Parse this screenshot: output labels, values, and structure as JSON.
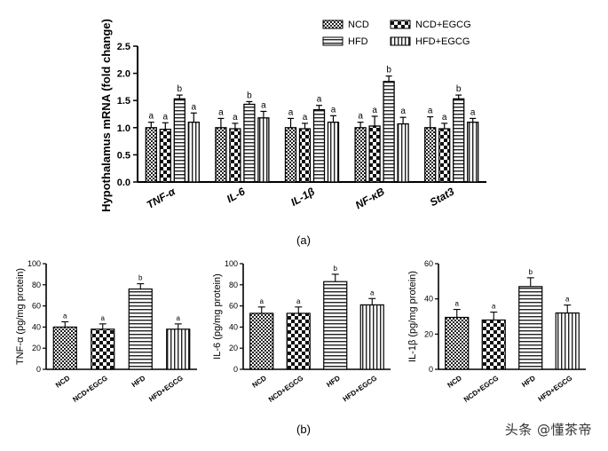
{
  "chart_data": [
    {
      "type": "bar",
      "panel_label": "(a)",
      "ylabel": "Hypothalamus mRNA (fold change)",
      "ylim": [
        0,
        2.5
      ],
      "yticks": [
        "0.0",
        "0.5",
        "1.0",
        "1.5",
        "2.0",
        "2.5"
      ],
      "categories": [
        "TNF-α",
        "IL-6",
        "IL-1β",
        "NF-κB",
        "Stat3"
      ],
      "legend_position": "top-right",
      "series": [
        {
          "name": "NCD",
          "pattern": "checker",
          "values": [
            1.0,
            1.0,
            1.0,
            1.0,
            1.0
          ],
          "errors": [
            0.1,
            0.17,
            0.17,
            0.1,
            0.2
          ],
          "labels": [
            "a",
            "a",
            "a",
            "a",
            "a"
          ]
        },
        {
          "name": "NCD+EGCG",
          "pattern": "checker-bold",
          "values": [
            0.97,
            0.98,
            0.98,
            1.03,
            0.98
          ],
          "errors": [
            0.12,
            0.1,
            0.1,
            0.18,
            0.1
          ],
          "labels": [
            "a",
            "a",
            "a",
            "a",
            "a"
          ]
        },
        {
          "name": "HFD",
          "pattern": "hlines",
          "values": [
            1.53,
            1.43,
            1.33,
            1.85,
            1.53
          ],
          "errors": [
            0.07,
            0.05,
            0.08,
            0.1,
            0.07
          ],
          "labels": [
            "b",
            "b",
            "a",
            "b",
            "b"
          ]
        },
        {
          "name": "HFD+EGCG",
          "pattern": "vlines",
          "values": [
            1.1,
            1.18,
            1.1,
            1.07,
            1.1
          ],
          "errors": [
            0.17,
            0.12,
            0.12,
            0.12,
            0.07
          ],
          "labels": [
            "a",
            "a",
            "a",
            "a",
            "a"
          ]
        }
      ]
    },
    {
      "type": "bar",
      "panel_label": "(b)",
      "ylabel": "TNF-α  (pg/mg protein)",
      "ylim": [
        0,
        100
      ],
      "yticks": [
        "0",
        "20",
        "40",
        "60",
        "80",
        "100"
      ],
      "categories": [
        "NCD",
        "NCD+EGCG",
        "HFD",
        "HFD+EGCG"
      ],
      "patterns": [
        "checker",
        "checker-bold",
        "hlines",
        "vlines"
      ],
      "values": [
        40,
        38,
        76,
        38
      ],
      "errors": [
        5,
        5,
        5,
        5
      ],
      "labels": [
        "a",
        "a",
        "b",
        "a"
      ]
    },
    {
      "type": "bar",
      "ylabel": "IL-6  (pg/mg protein)",
      "ylim": [
        0,
        100
      ],
      "yticks": [
        "0",
        "20",
        "40",
        "60",
        "80",
        "100"
      ],
      "categories": [
        "NCD",
        "NCD+EGCG",
        "HFD",
        "HFD+EGCG"
      ],
      "patterns": [
        "checker",
        "checker-bold",
        "hlines",
        "vlines"
      ],
      "values": [
        53,
        53,
        83,
        61
      ],
      "errors": [
        6,
        6,
        7,
        6
      ],
      "labels": [
        "a",
        "a",
        "b",
        "a"
      ]
    },
    {
      "type": "bar",
      "ylabel": "IL-1β  (pg/mg protein)",
      "ylim": [
        0,
        60
      ],
      "yticks": [
        "0",
        "20",
        "40",
        "60"
      ],
      "categories": [
        "NCD",
        "NCD+EGCG",
        "HFD",
        "HFD+EGCG"
      ],
      "patterns": [
        "checker",
        "checker-bold",
        "hlines",
        "vlines"
      ],
      "values": [
        29.5,
        28,
        47,
        32
      ],
      "errors": [
        4.5,
        4.5,
        5,
        4.5
      ],
      "labels": [
        "a",
        "a",
        "b",
        "a"
      ]
    }
  ],
  "watermark": "头条 @懂茶帝"
}
